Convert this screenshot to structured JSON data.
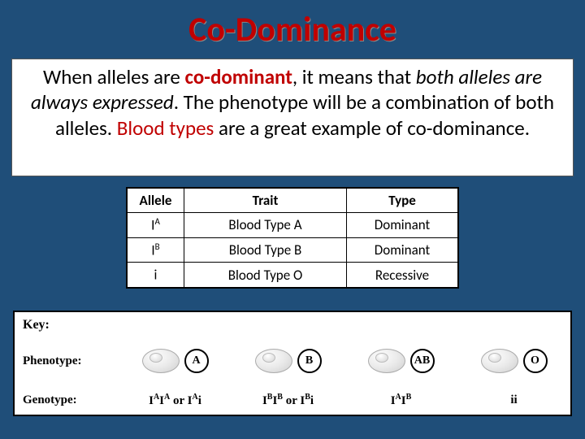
{
  "colors": {
    "page_bg": "#1f4e79",
    "accent": "#c00000",
    "white": "#ffffff",
    "border": "#000000"
  },
  "title": "Co-Dominance",
  "body": {
    "seg1": "When alleles are ",
    "em1": "co-dominant",
    "seg2": ", it means that ",
    "em2": "both alleles are always expressed",
    "seg3": ".  The phenotype will be a combination of both alleles.  ",
    "em3": "Blood types",
    "seg4": " are a great example of co-dominance."
  },
  "table": {
    "headers": [
      "Allele",
      "Trait",
      "Type"
    ],
    "rows": [
      {
        "allele_base": "I",
        "allele_sup": "A",
        "trait": "Blood Type A",
        "type": "Dominant"
      },
      {
        "allele_base": "I",
        "allele_sup": "B",
        "trait": "Blood Type B",
        "type": "Dominant"
      },
      {
        "allele_base": "i",
        "allele_sup": "",
        "trait": "Blood Type O",
        "type": "Recessive"
      }
    ]
  },
  "key": {
    "key_label": "Key:",
    "pheno_label": "Phenotype:",
    "geno_label": "Genotype:",
    "types": [
      "A",
      "B",
      "AB",
      "O"
    ],
    "genotypes_html": [
      "I<span class='gsup'>A</span>I<span class='gsup'>A</span> or I<span class='gsup'>A</span>i",
      "I<span class='gsup'>B</span>I<span class='gsup'>B</span> or I<span class='gsup'>B</span>i",
      "I<span class='gsup'>A</span>I<span class='gsup'>B</span>",
      "ii"
    ]
  }
}
